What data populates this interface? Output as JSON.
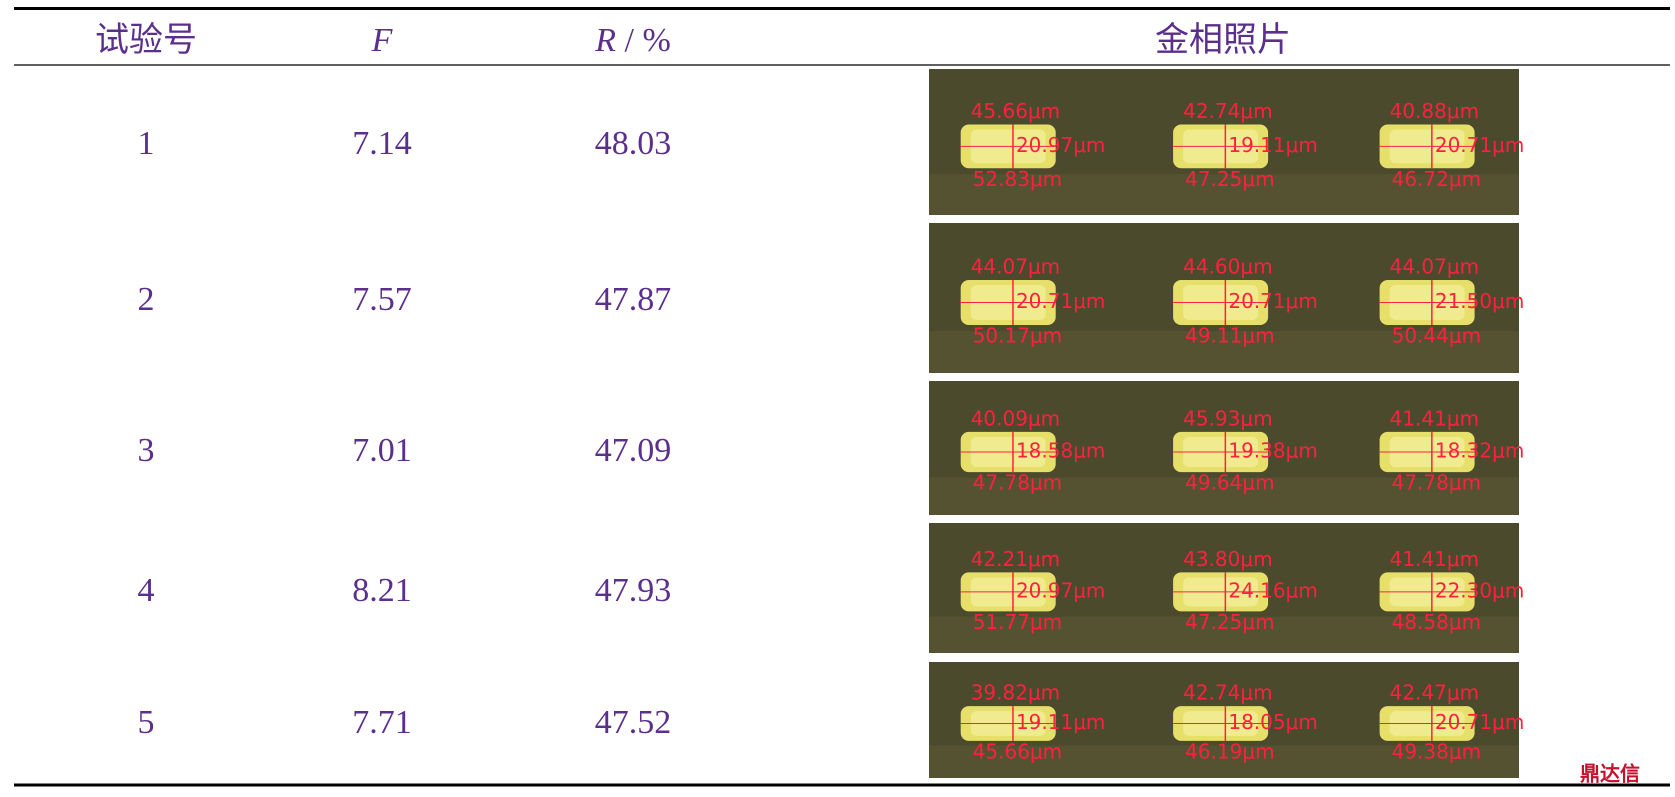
{
  "table": {
    "header": [
      {
        "text": "试验号"
      },
      {
        "symbol": "F"
      },
      {
        "symbol": "R",
        "unit": "/ %"
      },
      {
        "text": "金相照片"
      }
    ],
    "rows": [
      {
        "no": "1",
        "F": "7.14",
        "R": "48.03",
        "photo": [
          {
            "top": "45.66μm",
            "height": "20.97μm",
            "bottom": "52.83μm"
          },
          {
            "top": "42.74μm",
            "height": "19.11μm",
            "bottom": "47.25μm"
          },
          {
            "top": "40.88μm",
            "height": "20.71μm",
            "bottom": "46.72μm"
          }
        ]
      },
      {
        "no": "2",
        "F": "7.57",
        "R": "47.87",
        "photo": [
          {
            "top": "44.07μm",
            "height": "20.71μm",
            "bottom": "50.17μm"
          },
          {
            "top": "44.60μm",
            "height": "20.71μm",
            "bottom": "49.11μm"
          },
          {
            "top": "44.07μm",
            "height": "21.50μm",
            "bottom": "50.44μm"
          }
        ]
      },
      {
        "no": "3",
        "F": "7.01",
        "R": "47.09",
        "photo": [
          {
            "top": "40.09μm",
            "height": "18.58μm",
            "bottom": "47.78μm"
          },
          {
            "top": "45.93μm",
            "height": "19.38μm",
            "bottom": "49.64μm"
          },
          {
            "top": "41.41μm",
            "height": "18.32μm",
            "bottom": "47.78μm"
          }
        ]
      },
      {
        "no": "4",
        "F": "8.21",
        "R": "47.93",
        "photo": [
          {
            "top": "42.21μm",
            "height": "20.97μm",
            "bottom": "51.77μm"
          },
          {
            "top": "43.80μm",
            "height": "24.16μm",
            "bottom": "47.25μm"
          },
          {
            "top": "41.41μm",
            "height": "22.30μm",
            "bottom": "48.58μm"
          }
        ]
      },
      {
        "no": "5",
        "F": "7.71",
        "R": "47.52",
        "photo": [
          {
            "top": "39.82μm",
            "height": "19.11μm",
            "bottom": "45.66μm"
          },
          {
            "top": "42.74μm",
            "height": "18.05μm",
            "bottom": "46.19μm"
          },
          {
            "top": "42.47μm",
            "height": "20.71μm",
            "bottom": "49.38μm"
          }
        ]
      }
    ]
  },
  "watermark": "鼎达信"
}
